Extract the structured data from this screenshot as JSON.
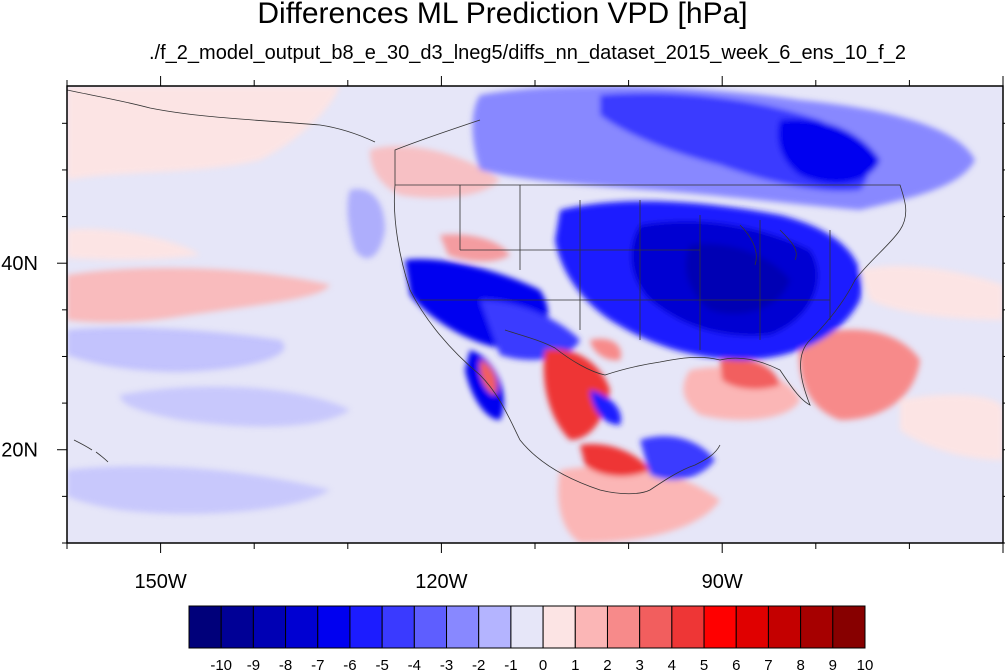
{
  "title": "Differences ML Prediction VPD [hPa]",
  "subtitle": "./f_2_model_output_b8_e_30_d3_lneg5/diffs_nn_dataset_2015_week_6_ens_10_f_2",
  "map": {
    "lon_range": [
      -160,
      -60
    ],
    "lat_range": [
      10,
      59
    ],
    "lon_tick_labels": [
      {
        "lon": -150,
        "label": "150W"
      },
      {
        "lon": -120,
        "label": "120W"
      },
      {
        "lon": -90,
        "label": "90W"
      }
    ],
    "lat_tick_labels": [
      {
        "lat": 40,
        "label": "40N"
      },
      {
        "lat": 20,
        "label": "20N"
      }
    ]
  },
  "colorbar": {
    "labels": [
      "-10",
      "-9",
      "-8",
      "-7",
      "-6",
      "-5",
      "-4",
      "-3",
      "-2",
      "-1",
      "0",
      "1",
      "2",
      "3",
      "4",
      "5",
      "6",
      "7",
      "8",
      "9",
      "10"
    ],
    "colors": [
      "#00007a",
      "#000096",
      "#0000b4",
      "#0000d2",
      "#0000f0",
      "#1c1cff",
      "#3a3aff",
      "#5e5eff",
      "#8888ff",
      "#b4b4ff",
      "#e6e6f8",
      "#fce4e4",
      "#fbb6b6",
      "#f78a8a",
      "#f25e5e",
      "#ee3636",
      "#ff0000",
      "#e00000",
      "#c40000",
      "#a60000",
      "#870000"
    ]
  }
}
